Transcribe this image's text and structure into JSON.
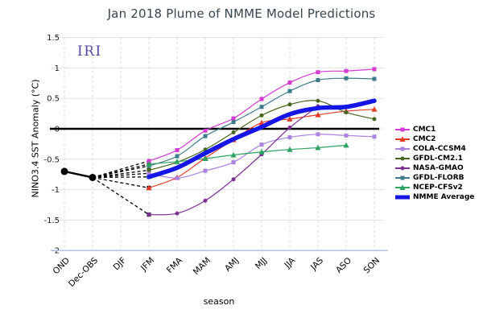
{
  "title": "Jan 2018 Plume of NMME Model Predictions",
  "watermark": "IRI",
  "chart_data": {
    "type": "line",
    "title": "Jan 2018 Plume of NMME Model Predictions",
    "xlabel": "season",
    "ylabel": "NINO3.4 SST Anomaly (°C)",
    "ylim": [
      -2,
      1.5
    ],
    "yticks": [
      1.5,
      1,
      0.5,
      0,
      -0.5,
      -1,
      -1.5,
      -2
    ],
    "ytick_labels": [
      "1.5",
      "1",
      "0.5",
      "0",
      "-0.5",
      "-1",
      "-1.5",
      "-2"
    ],
    "grid": true,
    "zero_line": true,
    "legend_position": "right",
    "categories": [
      "OND",
      "Dec-OBS",
      "DJF",
      "JFM",
      "FMA",
      "MAM",
      "AMJ",
      "MJJ",
      "JJA",
      "JAS",
      "ASO",
      "SON"
    ],
    "observed": {
      "color": "#000000",
      "values": [
        -0.7,
        -0.8,
        null,
        null,
        null,
        null,
        null,
        null,
        null,
        null,
        null,
        null
      ]
    },
    "dashed_connectors_from": "Dec-OBS",
    "series": [
      {
        "name": "CMC1",
        "color": "#d43ad4",
        "marker": "square",
        "width": 1.2,
        "values": [
          null,
          null,
          null,
          -0.53,
          -0.35,
          -0.03,
          0.17,
          0.49,
          0.76,
          0.93,
          0.95,
          0.98
        ]
      },
      {
        "name": "CMC2",
        "color": "#e23b28",
        "marker": "triangle",
        "width": 1.2,
        "values": [
          null,
          null,
          null,
          -0.97,
          -0.8,
          -0.48,
          -0.18,
          0.1,
          0.16,
          0.23,
          0.29,
          0.32
        ]
      },
      {
        "name": "COLA-CCSM4",
        "color": "#ab82e0",
        "marker": "square",
        "width": 1.2,
        "values": [
          null,
          null,
          null,
          -0.73,
          -0.81,
          -0.69,
          -0.55,
          -0.26,
          -0.14,
          -0.09,
          -0.11,
          -0.13
        ]
      },
      {
        "name": "GFDL-CM2.1",
        "color": "#45661c",
        "marker": "circle",
        "width": 1.2,
        "values": [
          null,
          null,
          null,
          -0.68,
          -0.55,
          -0.34,
          -0.06,
          0.22,
          0.4,
          0.46,
          0.27,
          0.16
        ]
      },
      {
        "name": "NASA-GMAO",
        "color": "#7e3092",
        "marker": "circle",
        "width": 1.2,
        "values": [
          null,
          null,
          null,
          -1.41,
          -1.39,
          -1.18,
          -0.83,
          -0.42,
          0.02,
          0.37,
          null,
          null
        ]
      },
      {
        "name": "GFDL-FLORB",
        "color": "#3e7b8a",
        "marker": "square",
        "width": 1.2,
        "values": [
          null,
          null,
          null,
          -0.61,
          -0.45,
          -0.12,
          0.11,
          0.36,
          0.62,
          0.8,
          0.83,
          0.82
        ]
      },
      {
        "name": "NCEP-CFSv2",
        "color": "#2da263",
        "marker": "triangle",
        "width": 1.2,
        "values": [
          null,
          null,
          null,
          -0.58,
          -0.54,
          -0.49,
          -0.43,
          -0.38,
          -0.34,
          -0.31,
          -0.27,
          null
        ]
      },
      {
        "name": "NMME Average",
        "color": "#1515e6",
        "marker": "none",
        "width": 5.5,
        "values": [
          null,
          null,
          null,
          -0.79,
          -0.64,
          -0.4,
          -0.17,
          0.03,
          0.24,
          0.34,
          0.36,
          0.46
        ]
      }
    ]
  }
}
